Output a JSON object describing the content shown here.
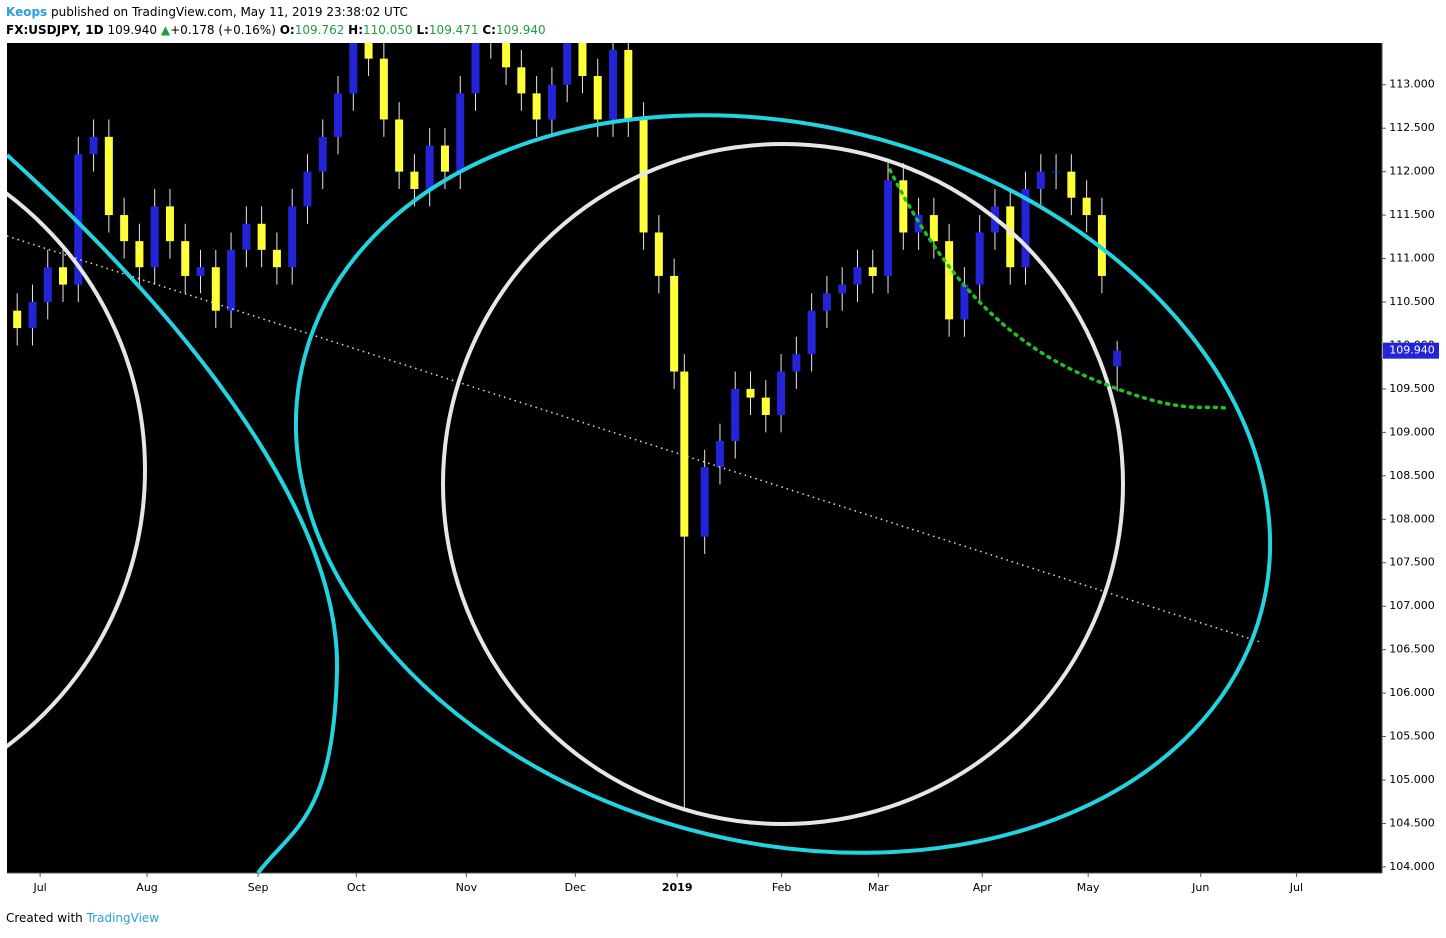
{
  "header": {
    "author": "Keops",
    "published": "published on TradingView.com, May 11, 2019 23:38:02 UTC",
    "symbol": "FX:USDJPY, 1D",
    "last": "109.940",
    "arrow": "▲",
    "change": "+0.178 (+0.16%)",
    "ohlc": [
      {
        "label": "O:",
        "value": "109.762"
      },
      {
        "label": "H:",
        "value": "110.050"
      },
      {
        "label": "L:",
        "value": "109.471"
      },
      {
        "label": "C:",
        "value": "109.940"
      }
    ]
  },
  "footer": {
    "created": "Created with",
    "brand": "TradingView"
  },
  "chart_data": {
    "type": "candlestick",
    "up_color": "#2323d8",
    "down_color": "#ffff3a",
    "wick_color": "#e8e8e8",
    "xlim": [
      0,
      270
    ],
    "ylim": [
      103.93,
      113.48
    ],
    "xticks": [
      {
        "value": 6.5,
        "label": "Jul"
      },
      {
        "value": 27.5,
        "label": "Aug"
      },
      {
        "value": 49.3,
        "label": "Sep"
      },
      {
        "value": 68.6,
        "label": "Oct"
      },
      {
        "value": 90.2,
        "label": "Nov"
      },
      {
        "value": 111.6,
        "label": "Dec"
      },
      {
        "value": 131.6,
        "label": "2019"
      },
      {
        "value": 152.1,
        "label": "Feb"
      },
      {
        "value": 171.1,
        "label": "Mar"
      },
      {
        "value": 191.5,
        "label": "Apr"
      },
      {
        "value": 212.3,
        "label": "May"
      },
      {
        "value": 234.4,
        "label": "Jun"
      },
      {
        "value": 253.2,
        "label": "Jul"
      }
    ],
    "yticks": [
      {
        "value": 104,
        "label": "104.000"
      },
      {
        "value": 104.5,
        "label": "104.500"
      },
      {
        "value": 105,
        "label": "105.000"
      },
      {
        "value": 105.5,
        "label": "105.500"
      },
      {
        "value": 106,
        "label": "106.000"
      },
      {
        "value": 106.5,
        "label": "106.500"
      },
      {
        "value": 107,
        "label": "107.000"
      },
      {
        "value": 107.5,
        "label": "107.500"
      },
      {
        "value": 108,
        "label": "108.000"
      },
      {
        "value": 108.5,
        "label": "108.500"
      },
      {
        "value": 109,
        "label": "109.000"
      },
      {
        "value": 109.5,
        "label": "109.500"
      },
      {
        "value": 110,
        "label": "110.000"
      },
      {
        "value": 110.5,
        "label": "110.500"
      },
      {
        "value": 111,
        "label": "111.000"
      },
      {
        "value": 111.5,
        "label": "111.500"
      },
      {
        "value": 112,
        "label": "112.000"
      },
      {
        "value": 112.5,
        "label": "112.500"
      },
      {
        "value": 113,
        "label": "113.000"
      }
    ],
    "x": [
      2,
      5,
      8,
      11,
      14,
      17,
      20,
      23,
      26,
      29,
      32,
      35,
      38,
      41,
      44,
      47,
      50,
      53,
      56,
      59,
      62,
      65,
      68,
      71,
      74,
      77,
      80,
      83,
      86,
      89,
      92,
      95,
      98,
      101,
      104,
      107,
      110,
      113,
      116,
      119,
      122,
      125,
      128,
      131,
      133,
      137,
      140,
      143,
      146,
      149,
      152,
      155,
      158,
      161,
      164,
      167,
      170,
      173,
      176,
      179,
      182,
      185,
      188,
      191,
      194,
      197,
      200,
      203,
      206,
      209,
      212,
      215,
      218
    ],
    "open": [
      110.4,
      110.2,
      110.5,
      110.9,
      110.7,
      112.2,
      112.4,
      111.5,
      111.2,
      110.9,
      111.6,
      111.2,
      110.8,
      110.9,
      110.4,
      111.1,
      111.4,
      111.1,
      110.9,
      111.6,
      112.0,
      112.4,
      112.9,
      113.7,
      113.3,
      112.6,
      112.0,
      111.8,
      112.3,
      112.0,
      112.9,
      113.5,
      113.6,
      113.2,
      112.9,
      112.6,
      113.0,
      113.5,
      113.1,
      112.6,
      113.4,
      112.6,
      111.3,
      110.8,
      109.7,
      107.8,
      108.6,
      108.9,
      109.5,
      109.4,
      109.2,
      109.7,
      109.9,
      110.4,
      110.6,
      110.7,
      110.9,
      110.8,
      111.9,
      111.3,
      111.5,
      111.2,
      110.3,
      110.7,
      111.3,
      111.6,
      110.9,
      111.8,
      112.0,
      112.0,
      111.7,
      111.5,
      109.762
    ],
    "high": [
      110.6,
      110.7,
      111.1,
      111.1,
      112.4,
      112.6,
      112.6,
      111.7,
      111.4,
      111.8,
      111.8,
      111.4,
      111.1,
      111.1,
      111.3,
      111.6,
      111.6,
      111.3,
      111.8,
      112.2,
      112.6,
      113.1,
      113.9,
      113.9,
      113.5,
      112.8,
      112.2,
      112.5,
      112.5,
      113.1,
      113.7,
      113.8,
      113.8,
      113.4,
      113.1,
      113.2,
      113.7,
      113.7,
      113.3,
      113.6,
      113.6,
      112.8,
      111.5,
      111.0,
      109.9,
      108.8,
      109.1,
      109.7,
      109.7,
      109.6,
      109.9,
      110.1,
      110.6,
      110.8,
      110.9,
      111.1,
      111.1,
      112.1,
      112.1,
      111.7,
      111.7,
      111.4,
      110.9,
      111.5,
      111.8,
      111.8,
      112.0,
      112.2,
      112.2,
      112.2,
      111.9,
      111.7,
      110.05
    ],
    "low": [
      110.0,
      110.0,
      110.3,
      110.5,
      110.5,
      112.0,
      111.3,
      111.0,
      110.7,
      110.7,
      111.0,
      110.6,
      110.6,
      110.2,
      110.2,
      110.9,
      110.9,
      110.7,
      110.7,
      111.4,
      111.8,
      112.2,
      112.7,
      113.1,
      112.4,
      111.8,
      111.6,
      111.6,
      111.8,
      111.8,
      112.7,
      113.3,
      113.0,
      112.7,
      112.4,
      112.4,
      112.8,
      112.9,
      112.4,
      112.4,
      112.4,
      111.1,
      110.6,
      109.5,
      104.68,
      107.6,
      108.4,
      108.7,
      109.2,
      109.0,
      109.0,
      109.5,
      109.7,
      110.2,
      110.4,
      110.5,
      110.6,
      110.6,
      111.1,
      111.1,
      111.0,
      110.1,
      110.1,
      110.5,
      111.1,
      110.7,
      110.7,
      111.6,
      111.8,
      111.5,
      111.3,
      110.6,
      109.471
    ],
    "close": [
      110.2,
      110.5,
      110.9,
      110.7,
      112.2,
      112.4,
      111.5,
      111.2,
      110.9,
      111.6,
      111.2,
      110.8,
      110.9,
      110.4,
      111.1,
      111.4,
      111.1,
      110.9,
      111.6,
      112.0,
      112.4,
      112.9,
      113.7,
      113.3,
      112.6,
      112.0,
      111.8,
      112.3,
      112.0,
      112.9,
      113.5,
      113.6,
      113.2,
      112.9,
      112.6,
      113.0,
      113.5,
      113.1,
      112.6,
      113.4,
      112.6,
      111.3,
      110.8,
      109.7,
      107.8,
      108.6,
      108.9,
      109.5,
      109.4,
      109.2,
      109.7,
      109.9,
      110.4,
      110.6,
      110.7,
      110.9,
      110.8,
      111.9,
      111.3,
      111.5,
      111.2,
      110.3,
      110.7,
      111.3,
      111.6,
      110.9,
      111.8,
      112.0,
      112.0,
      111.7,
      111.5,
      110.8,
      109.94
    ]
  }
}
